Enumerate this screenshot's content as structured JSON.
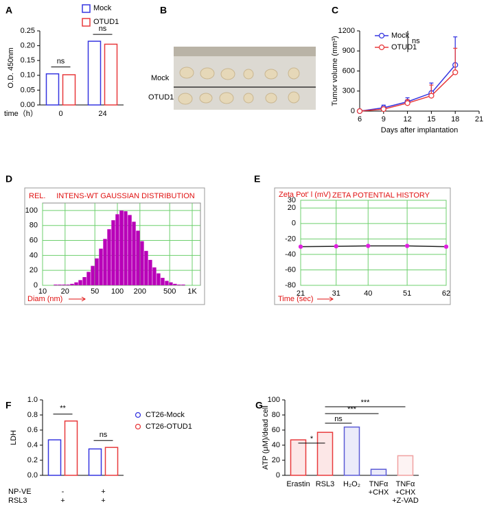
{
  "photo": {
    "panel_label": "B",
    "rows": [
      "Mock",
      "OTUD1"
    ]
  },
  "chart_data": [
    {
      "type": "bar",
      "panel_label": "A",
      "y_label": "O.D. 450nm",
      "x_label": "time（h）",
      "categories": [
        "0",
        "24"
      ],
      "series": [
        {
          "name": "Mock",
          "color": "#3535e0",
          "values": [
            0.105,
            0.215
          ]
        },
        {
          "name": "OTUD1",
          "color": "#e8393b",
          "values": [
            0.102,
            0.205
          ]
        }
      ],
      "ylim": [
        0,
        0.25
      ],
      "yticks": [
        {
          "value": 0,
          "label": "0.00"
        },
        {
          "value": 0.05,
          "label": "0.05"
        },
        {
          "value": 0.1,
          "label": "0.10"
        },
        {
          "value": 0.15,
          "label": "0.15"
        },
        {
          "value": 0.2,
          "label": "0.20"
        },
        {
          "value": 0.25,
          "label": "0.25"
        }
      ],
      "annotations": [
        "ns",
        "ns"
      ]
    },
    {
      "type": "line",
      "panel_label": "C",
      "y_label": "Tumor volume (mm³)",
      "x_label": "Days after implantation",
      "x": [
        6,
        9,
        12,
        15,
        18
      ],
      "series": [
        {
          "name": "Mock",
          "color": "#3535e0",
          "values": [
            0,
            50,
            140,
            270,
            690
          ],
          "errors": [
            0,
            40,
            60,
            150,
            420
          ]
        },
        {
          "name": "OTUD1",
          "color": "#e8393b",
          "values": [
            0,
            30,
            120,
            230,
            580
          ],
          "errors": [
            0,
            20,
            50,
            160,
            360
          ]
        }
      ],
      "xlim": [
        6,
        21
      ],
      "xticks": [
        6,
        9,
        12,
        15,
        18,
        21
      ],
      "ylim": [
        0,
        1200
      ],
      "yticks": [
        0,
        300,
        600,
        900,
        1200
      ],
      "annotation": "ns"
    },
    {
      "type": "histogram",
      "panel_label": "D",
      "title": "INTENS-WT GAUSSIAN DISTRIBUTION",
      "y_label": "REL.",
      "x_label": "Diam (nm)",
      "color": "#b800b8",
      "log_x": true,
      "grid": true,
      "grid_color": "#6ccf6c",
      "bins": [
        14.1,
        16.0,
        18.2,
        20.7,
        23.4,
        26.6,
        30.2,
        34.3,
        38.9,
        44.2,
        50.1,
        56.9,
        64.6,
        73.3,
        83.2,
        94.4,
        107,
        122,
        138,
        157,
        178,
        202,
        229,
        260,
        295,
        335,
        380,
        432,
        490,
        556,
        631,
        716,
        813
      ],
      "values": [
        1,
        1,
        1,
        1,
        2,
        4,
        7,
        11,
        18,
        26,
        36,
        49,
        62,
        75,
        87,
        95,
        100,
        99,
        94,
        85,
        73,
        59,
        46,
        34,
        24,
        16,
        10,
        6,
        4,
        2,
        1,
        1
      ],
      "xlim": [
        10,
        1000
      ],
      "xticks": [
        10,
        20,
        50,
        100,
        200,
        500,
        {
          "value": 1000,
          "label": "1K"
        }
      ],
      "ylim": [
        0,
        110
      ],
      "yticks": [
        0,
        20,
        40,
        60,
        80,
        100
      ]
    },
    {
      "type": "line",
      "panel_label": "E",
      "title": "ZETA POTENTIAL HISTORY",
      "y_label": "Zeta Pot' l (mV)",
      "x_label": "Time (sec)",
      "grid": true,
      "grid_color": "#6ccf6c",
      "x": [
        21,
        31,
        40,
        51,
        62
      ],
      "series": [
        {
          "color": "#222222",
          "marker_color": "#e020e0",
          "values": [
            -30,
            -29.5,
            -29,
            -29,
            -30
          ]
        }
      ],
      "xlim": [
        21,
        62
      ],
      "xticks": [
        21,
        31,
        40,
        51,
        62
      ],
      "ylim": [
        -80,
        30
      ],
      "yticks": [
        -80,
        -60,
        -40,
        -20,
        0,
        20,
        30
      ]
    },
    {
      "type": "bar",
      "panel_label": "F",
      "y_label": "LDH",
      "series": [
        {
          "name": "CT26-Mock",
          "color": "#3535e0",
          "values": [
            0.47,
            0.35
          ]
        },
        {
          "name": "CT26-OTUD1",
          "color": "#e8393b",
          "values": [
            0.72,
            0.37
          ]
        }
      ],
      "conditions": [
        {
          "name": "NP-VE",
          "values": [
            "-",
            "+"
          ]
        },
        {
          "name": "RSL3",
          "values": [
            "+",
            "+"
          ]
        }
      ],
      "ylim": [
        0,
        1
      ],
      "yticks": [
        {
          "value": 0,
          "label": "0.0"
        },
        {
          "value": 0.2,
          "label": "0.2"
        },
        {
          "value": 0.4,
          "label": "0.4"
        },
        {
          "value": 0.6,
          "label": "0.6"
        },
        {
          "value": 0.8,
          "label": "0.8"
        },
        {
          "value": 1,
          "label": "1.0"
        }
      ],
      "annotations": [
        "**",
        "ns"
      ]
    },
    {
      "type": "bar",
      "panel_label": "G",
      "y_label": "ATP (μM)/dead cell",
      "categories": [
        [
          "Erastin"
        ],
        [
          "RSL3"
        ],
        [
          "H₂O₂"
        ],
        [
          "TNFα",
          "+CHX"
        ],
        [
          "TNFα",
          "+CHX",
          "+Z-VAD"
        ]
      ],
      "values": [
        47,
        57,
        64,
        8,
        26
      ],
      "colors": [
        "#e8393b",
        "#e8393b",
        "#5a5ad6",
        "#5a5ad6",
        "#f0a0a0"
      ],
      "ylim": [
        0,
        100
      ],
      "yticks": [
        0,
        20,
        40,
        60,
        80,
        100
      ],
      "annotations": [
        "*",
        "ns",
        "***",
        "***"
      ]
    }
  ]
}
